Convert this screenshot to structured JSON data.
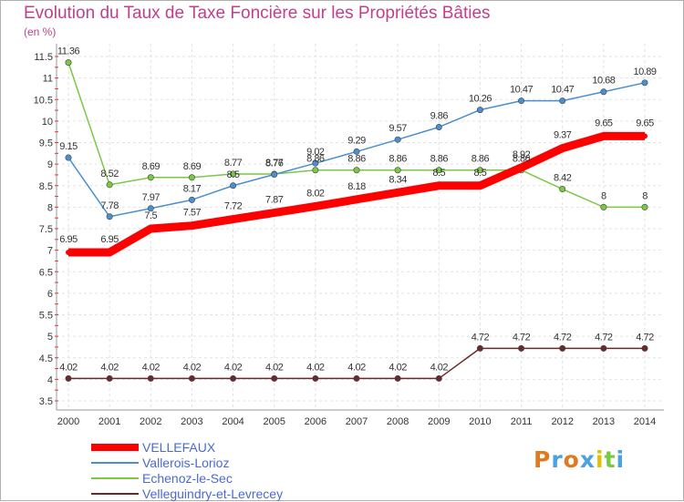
{
  "chart_data": {
    "type": "line",
    "title": "Evolution du Taux de Taxe Foncière sur les Propriétés Bâties",
    "unit_label": "(en %)",
    "x": [
      "2000",
      "2001",
      "2002",
      "2003",
      "2004",
      "2005",
      "2006",
      "2007",
      "2008",
      "2009",
      "2010",
      "2011",
      "2012",
      "2013",
      "2014"
    ],
    "ylim": [
      3.5,
      11.5
    ],
    "yticks": [
      "3.5",
      "4",
      "4.5",
      "5",
      "5.5",
      "6",
      "6.5",
      "7",
      "7.5",
      "8",
      "8.5",
      "9",
      "9.5",
      "10",
      "10.5",
      "11",
      "11.5"
    ],
    "grid": true,
    "legend_position": "bottom-left",
    "series": [
      {
        "name": "VELLEFAUX",
        "color": "#ff0000",
        "values": [
          6.95,
          6.95,
          7.5,
          7.57,
          7.72,
          7.87,
          8.02,
          8.18,
          8.34,
          8.5,
          8.5,
          8.92,
          9.37,
          9.65,
          9.65
        ],
        "labels": [
          "6.95",
          "6.95",
          "7.5",
          "7.57",
          "7.72",
          "7.87",
          "8.02",
          "8.18",
          "8.34",
          "8.5",
          "8.5",
          "8.92",
          "9.37",
          "9.65",
          "9.65"
        ]
      },
      {
        "name": "Vallerois-Lorioz",
        "color": "#4a8fd0",
        "values": [
          9.15,
          7.78,
          7.97,
          8.17,
          8.5,
          8.76,
          9.02,
          9.29,
          9.57,
          9.86,
          10.26,
          10.47,
          10.47,
          10.68,
          10.89
        ],
        "labels": [
          "9.15",
          "7.78",
          "7.97",
          "8.17",
          "8.5",
          "8.76",
          "9.02",
          "9.29",
          "9.57",
          "9.86",
          "10.26",
          "10.47",
          "10.47",
          "10.68",
          "10.89"
        ]
      },
      {
        "name": "Echenoz-le-Sec",
        "color": "#7ac943",
        "values": [
          11.36,
          8.52,
          8.69,
          8.69,
          8.77,
          8.77,
          8.86,
          8.86,
          8.86,
          8.86,
          8.86,
          8.86,
          8.42,
          8,
          8
        ],
        "labels": [
          "11.36",
          "8.52",
          "8.69",
          "8.69",
          "8.77",
          "8.77",
          "8.86",
          "8.86",
          "8.86",
          "8.86",
          "8.86",
          "8.86",
          "8.42",
          "8",
          "8"
        ]
      },
      {
        "name": "Velleguindry-et-Levrecey",
        "color": "#6b2a2a",
        "values": [
          4.02,
          4.02,
          4.02,
          4.02,
          4.02,
          4.02,
          4.02,
          4.02,
          4.02,
          4.02,
          4.72,
          4.72,
          4.72,
          4.72,
          4.72
        ],
        "labels": [
          "4.02",
          "4.02",
          "4.02",
          "4.02",
          "4.02",
          "4.02",
          "4.02",
          "4.02",
          "4.02",
          "4.02",
          "4.72",
          "4.72",
          "4.72",
          "4.72",
          "4.72"
        ]
      }
    ]
  },
  "brand": {
    "logo_text": "Proxiti",
    "colors": [
      "#e07a20",
      "#4aa3df",
      "#e07a20",
      "#4aa3df",
      "#e2c200",
      "#7ac943",
      "#4aa3df"
    ]
  }
}
